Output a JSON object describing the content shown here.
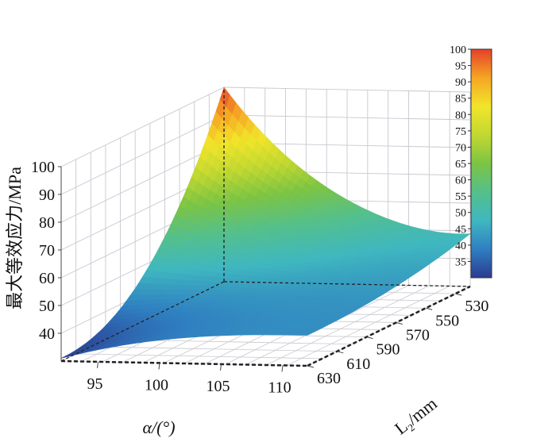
{
  "chart_data": {
    "type": "surface",
    "title": "",
    "zlabel": "最大等效应力/MPa",
    "xlabel": "α/(°)",
    "ylabel": "L2/mm",
    "ylabel_main": "L",
    "ylabel_sub": "2",
    "ylabel_unit": "/mm",
    "zlim": [
      30,
      100
    ],
    "alpha_range": [
      92,
      112
    ],
    "L2_range": [
      520,
      630
    ],
    "z_ticks": [
      "100",
      "90",
      "80",
      "70",
      "60",
      "50",
      "40"
    ],
    "alpha_ticks": [
      "95",
      "100",
      "105",
      "110"
    ],
    "L2_ticks": [
      "530",
      "550",
      "570",
      "590",
      "610",
      "630"
    ],
    "colorbar": {
      "ticks": [
        "100",
        "95",
        "90",
        "85",
        "80",
        "75",
        "70",
        "65",
        "60",
        "55",
        "50",
        "45",
        "40",
        "35"
      ],
      "range": [
        30,
        100
      ],
      "colors": [
        "#2b3b8f",
        "#2f7fc1",
        "#3fb7c0",
        "#55c08a",
        "#7cc443",
        "#c2d831",
        "#f2e52a",
        "#f5a524",
        "#e5402a"
      ]
    },
    "grid": true,
    "corner_values": [
      {
        "alpha": 92,
        "L2": 520,
        "stress": 100
      },
      {
        "alpha": 92,
        "L2": 630,
        "stress": 31
      },
      {
        "alpha": 112,
        "L2": 520,
        "stress": 49
      },
      {
        "alpha": 112,
        "L2": 630,
        "stress": 41
      }
    ]
  }
}
